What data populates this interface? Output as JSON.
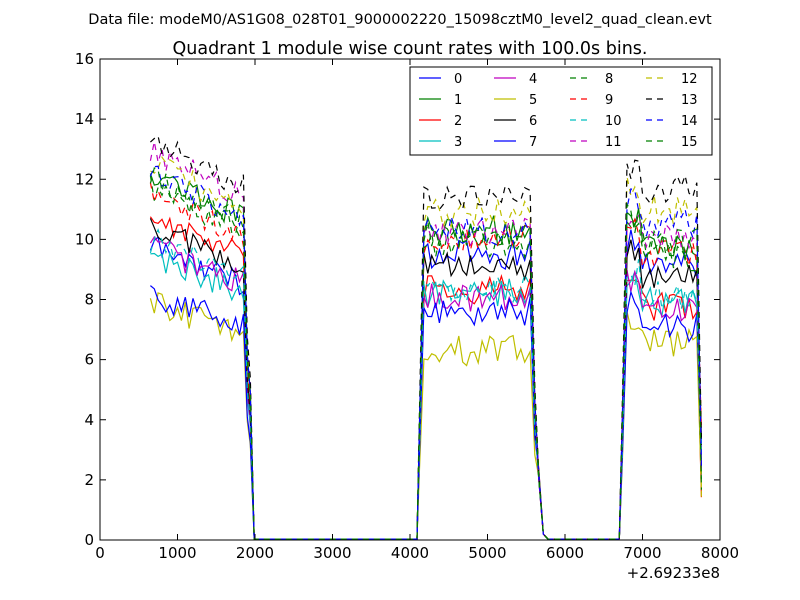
{
  "chart_data": {
    "type": "line",
    "suptitle": "Data file: modeM0/AS1G08_028T01_9000002220_15098cztM0_level2_quad_clean.evt",
    "title": "Quadrant 1 module wise count rates with 100.0s bins.",
    "xlabel": "",
    "ylabel": "",
    "x_offset_label": "+2.69233e8",
    "xlim": [
      0,
      8000
    ],
    "ylim": [
      0,
      16
    ],
    "xticks": [
      "0",
      "1000",
      "2000",
      "3000",
      "4000",
      "5000",
      "6000",
      "7000",
      "8000"
    ],
    "yticks": [
      "0",
      "2",
      "4",
      "6",
      "8",
      "10",
      "12",
      "14",
      "16"
    ],
    "grid": false,
    "legend_position": "top-right",
    "segments": [
      {
        "start": 650,
        "end": 1850,
        "edge": 1940,
        "edge_scale": 0.4
      },
      {
        "start": 4180,
        "end": 5500,
        "edge": 4120,
        "edge_scale": 0.35
      },
      {
        "start": 6800,
        "end": 7700,
        "edge": 6740,
        "edge_scale": 0.4
      }
    ],
    "series": [
      {
        "name": "0",
        "color": "#0000ff",
        "style": "solid",
        "levels": [
          9.8,
          9.5,
          9.2
        ]
      },
      {
        "name": "1",
        "color": "#008000",
        "style": "solid",
        "levels": [
          12.3,
          10.3,
          9.8
        ]
      },
      {
        "name": "2",
        "color": "#ff0000",
        "style": "solid",
        "levels": [
          10.8,
          8.3,
          7.8
        ]
      },
      {
        "name": "3",
        "color": "#00bfbf",
        "style": "solid",
        "levels": [
          9.5,
          8.2,
          7.9
        ]
      },
      {
        "name": "4",
        "color": "#bf00bf",
        "style": "solid",
        "levels": [
          9.8,
          8.1,
          7.7
        ]
      },
      {
        "name": "5",
        "color": "#bfbf00",
        "style": "solid",
        "levels": [
          7.9,
          6.3,
          6.6
        ]
      },
      {
        "name": "6",
        "color": "#000000",
        "style": "solid",
        "levels": [
          10.5,
          9.1,
          8.7
        ]
      },
      {
        "name": "7",
        "color": "#0000ff",
        "style": "solid",
        "levels": [
          8.2,
          7.6,
          7.1
        ]
      },
      {
        "name": "8",
        "color": "#008000",
        "style": "dashed",
        "levels": [
          11.8,
          9.9,
          9.4
        ]
      },
      {
        "name": "9",
        "color": "#ff0000",
        "style": "dashed",
        "levels": [
          11.5,
          10.0,
          9.5
        ]
      },
      {
        "name": "10",
        "color": "#00bfbf",
        "style": "dashed",
        "levels": [
          10.0,
          8.4,
          8.1
        ]
      },
      {
        "name": "11",
        "color": "#bf00bf",
        "style": "dashed",
        "levels": [
          13.0,
          10.3,
          10.0
        ]
      },
      {
        "name": "12",
        "color": "#bfbf00",
        "style": "dashed",
        "levels": [
          12.6,
          10.9,
          11.0
        ]
      },
      {
        "name": "13",
        "color": "#000000",
        "style": "dashed",
        "levels": [
          13.5,
          11.4,
          11.7
        ]
      },
      {
        "name": "14",
        "color": "#0000ff",
        "style": "dashed",
        "levels": [
          12.3,
          10.3,
          10.5
        ]
      },
      {
        "name": "15",
        "color": "#008000",
        "style": "dashed",
        "levels": [
          12.0,
          10.2,
          9.9
        ]
      }
    ]
  }
}
